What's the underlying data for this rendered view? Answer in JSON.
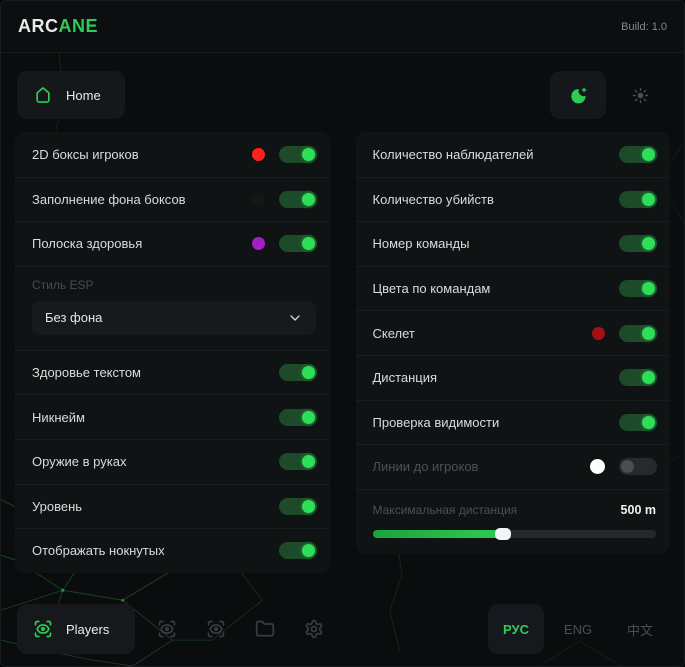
{
  "header": {
    "logo_primary": "ARC",
    "logo_accent": "ANE",
    "build": "Build: 1.0"
  },
  "nav": {
    "home_label": "Home"
  },
  "theme": {
    "dark_active": true,
    "icons": [
      "moon-icon",
      "sun-icon"
    ]
  },
  "left_panel": {
    "rows": [
      {
        "type": "toggle",
        "label": "2D боксы игроков",
        "dot": "#ff2121",
        "on": true
      },
      {
        "type": "toggle",
        "label": "Заполнение фона боксов",
        "dot": "#161616",
        "on": true
      },
      {
        "type": "toggle",
        "label": "Полоска здоровья",
        "dot": "#a51fc4",
        "on": true
      },
      {
        "type": "select",
        "label": "Стиль ESP",
        "value": "Без фона"
      },
      {
        "type": "toggle",
        "label": "Здоровье текстом",
        "on": true
      },
      {
        "type": "toggle",
        "label": "Никнейм",
        "on": true
      },
      {
        "type": "toggle",
        "label": "Оружие в руках",
        "on": true
      },
      {
        "type": "toggle",
        "label": "Уровень",
        "on": true
      },
      {
        "type": "toggle",
        "label": "Отображать нокнутых",
        "on": true
      }
    ]
  },
  "right_panel": {
    "rows": [
      {
        "type": "toggle",
        "label": "Количество наблюдателей",
        "on": true
      },
      {
        "type": "toggle",
        "label": "Количество убийств",
        "on": true
      },
      {
        "type": "toggle",
        "label": "Номер команды",
        "on": true
      },
      {
        "type": "toggle",
        "label": "Цвета по командам",
        "on": true
      },
      {
        "type": "toggle",
        "label": "Скелет",
        "dot": "#a31111",
        "on": true
      },
      {
        "type": "toggle",
        "label": "Дистанция",
        "on": true
      },
      {
        "type": "toggle",
        "label": "Проверка видимости",
        "on": true
      },
      {
        "type": "toggle",
        "label": "Линии до игроков",
        "dot": "#ffffff",
        "big_dot": true,
        "on": false,
        "disabled": true
      },
      {
        "type": "slider",
        "label": "Максимальная дистанция",
        "value": "500 m",
        "percent": 46
      }
    ]
  },
  "footer": {
    "players_label": "Players",
    "icons": [
      "scan-eye-icon",
      "scan-eye-icon",
      "folder-icon",
      "gear-icon"
    ],
    "languages": [
      {
        "label": "РУС",
        "active": true
      },
      {
        "label": "ENG",
        "active": false
      },
      {
        "label": "中文",
        "active": false
      }
    ]
  },
  "colors": {
    "accent": "#2ecc54",
    "toggle_track_on": "#1d4a29",
    "toggle_knob_on": "#2ede58",
    "toggle_track_off": "#26292d",
    "panel_bg": "#101314",
    "page_bg": "#0a0c0d"
  }
}
